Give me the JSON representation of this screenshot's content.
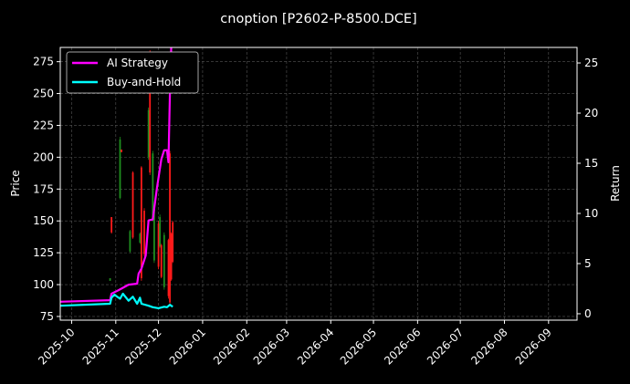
{
  "chart_data": {
    "type": "line",
    "title": "cnoption [P2602-P-8500.DCE]",
    "xlabel": "",
    "ylabel": "Price",
    "y2label": "Return",
    "xlim": [
      "2025-09-23",
      "2026-09-21"
    ],
    "ylim": [
      72.1,
      286.2
    ],
    "y2lim": [
      -0.64,
      26.55
    ],
    "grid": true,
    "legend_position": "top-left",
    "x_ticks": [
      "2025-10",
      "2025-11",
      "2025-12",
      "2026-01",
      "2026-02",
      "2026-03",
      "2026-04",
      "2026-05",
      "2026-06",
      "2026-07",
      "2026-08",
      "2026-09"
    ],
    "y_ticks": [
      75,
      100,
      125,
      150,
      175,
      200,
      225,
      250,
      275
    ],
    "y2_ticks": [
      0,
      5,
      10,
      15,
      20,
      25
    ],
    "candles": [
      {
        "date": "2025-10-28",
        "open": 103,
        "high": 105,
        "low": 103,
        "close": 105
      },
      {
        "date": "2025-10-29",
        "open": 153,
        "high": 153,
        "low": 140,
        "close": 141
      },
      {
        "date": "2025-11-04",
        "open": 168,
        "high": 216,
        "low": 167,
        "close": 214
      },
      {
        "date": "2025-11-05",
        "open": 206,
        "high": 206,
        "low": 204,
        "close": 204
      },
      {
        "date": "2025-11-11",
        "open": 126,
        "high": 143,
        "low": 125,
        "close": 142
      },
      {
        "date": "2025-11-13",
        "open": 188,
        "high": 189,
        "low": 136,
        "close": 137
      },
      {
        "date": "2025-11-18",
        "open": 133,
        "high": 141,
        "low": 132,
        "close": 140
      },
      {
        "date": "2025-11-19",
        "open": 192,
        "high": 193,
        "low": 103,
        "close": 105
      },
      {
        "date": "2025-11-21",
        "open": 158,
        "high": 160,
        "low": 122,
        "close": 124
      },
      {
        "date": "2025-11-24",
        "open": 200,
        "high": 239,
        "low": 198,
        "close": 237
      },
      {
        "date": "2025-11-25",
        "open": 282,
        "high": 284,
        "low": 186,
        "close": 188
      },
      {
        "date": "2025-11-27",
        "open": 152,
        "high": 205,
        "low": 150,
        "close": 203
      },
      {
        "date": "2025-11-28",
        "open": 119,
        "high": 164,
        "low": 117,
        "close": 162
      },
      {
        "date": "2025-12-01",
        "open": 148,
        "high": 150,
        "low": 112,
        "close": 114
      },
      {
        "date": "2025-12-02",
        "open": 130,
        "high": 155,
        "low": 129,
        "close": 153
      },
      {
        "date": "2025-12-03",
        "open": 131,
        "high": 132,
        "low": 105,
        "close": 106
      },
      {
        "date": "2025-12-05",
        "open": 98,
        "high": 141,
        "low": 96,
        "close": 139
      },
      {
        "date": "2025-12-08",
        "open": 135,
        "high": 136,
        "low": 89,
        "close": 91
      },
      {
        "date": "2025-12-09",
        "open": 203,
        "high": 205,
        "low": 84,
        "close": 86
      },
      {
        "date": "2025-12-10",
        "open": 140,
        "high": 141,
        "low": 103,
        "close": 104
      },
      {
        "date": "2025-12-11",
        "open": 149,
        "high": 150,
        "low": 117,
        "close": 118
      }
    ],
    "series": [
      {
        "name": "AI Strategy",
        "color": "#ff00ff",
        "axis": "right",
        "x": [
          "2025-09-23",
          "2025-10-28",
          "2025-10-29",
          "2025-11-03",
          "2025-11-10",
          "2025-11-16",
          "2025-11-17",
          "2025-11-19",
          "2025-11-22",
          "2025-11-24",
          "2025-11-27",
          "2025-11-30",
          "2025-12-03",
          "2025-12-05",
          "2025-12-07",
          "2025-12-08",
          "2025-12-09",
          "2025-12-10"
        ],
        "values": [
          1.2,
          1.35,
          2.0,
          2.35,
          2.9,
          3.0,
          4.0,
          4.5,
          5.8,
          9.3,
          9.4,
          12.6,
          15.4,
          16.3,
          16.3,
          15.1,
          22.0,
          26.8
        ]
      },
      {
        "name": "Buy-and-Hold",
        "color": "#00ffff",
        "axis": "right",
        "x": [
          "2025-09-23",
          "2025-10-28",
          "2025-10-29",
          "2025-10-31",
          "2025-11-04",
          "2025-11-06",
          "2025-11-10",
          "2025-11-13",
          "2025-11-16",
          "2025-11-18",
          "2025-11-19",
          "2025-11-24",
          "2025-11-27",
          "2025-12-01",
          "2025-12-05",
          "2025-12-07",
          "2025-12-09",
          "2025-12-11"
        ],
        "values": [
          0.8,
          1.0,
          1.6,
          1.9,
          1.5,
          2.0,
          1.3,
          1.7,
          1.0,
          1.6,
          1.0,
          0.8,
          0.65,
          0.55,
          0.7,
          0.65,
          0.9,
          0.7
        ]
      }
    ],
    "colors": {
      "up": "#1f8f1f",
      "down": "#ff1a1a",
      "grid": "#555555",
      "axes": "#ffffff"
    }
  }
}
